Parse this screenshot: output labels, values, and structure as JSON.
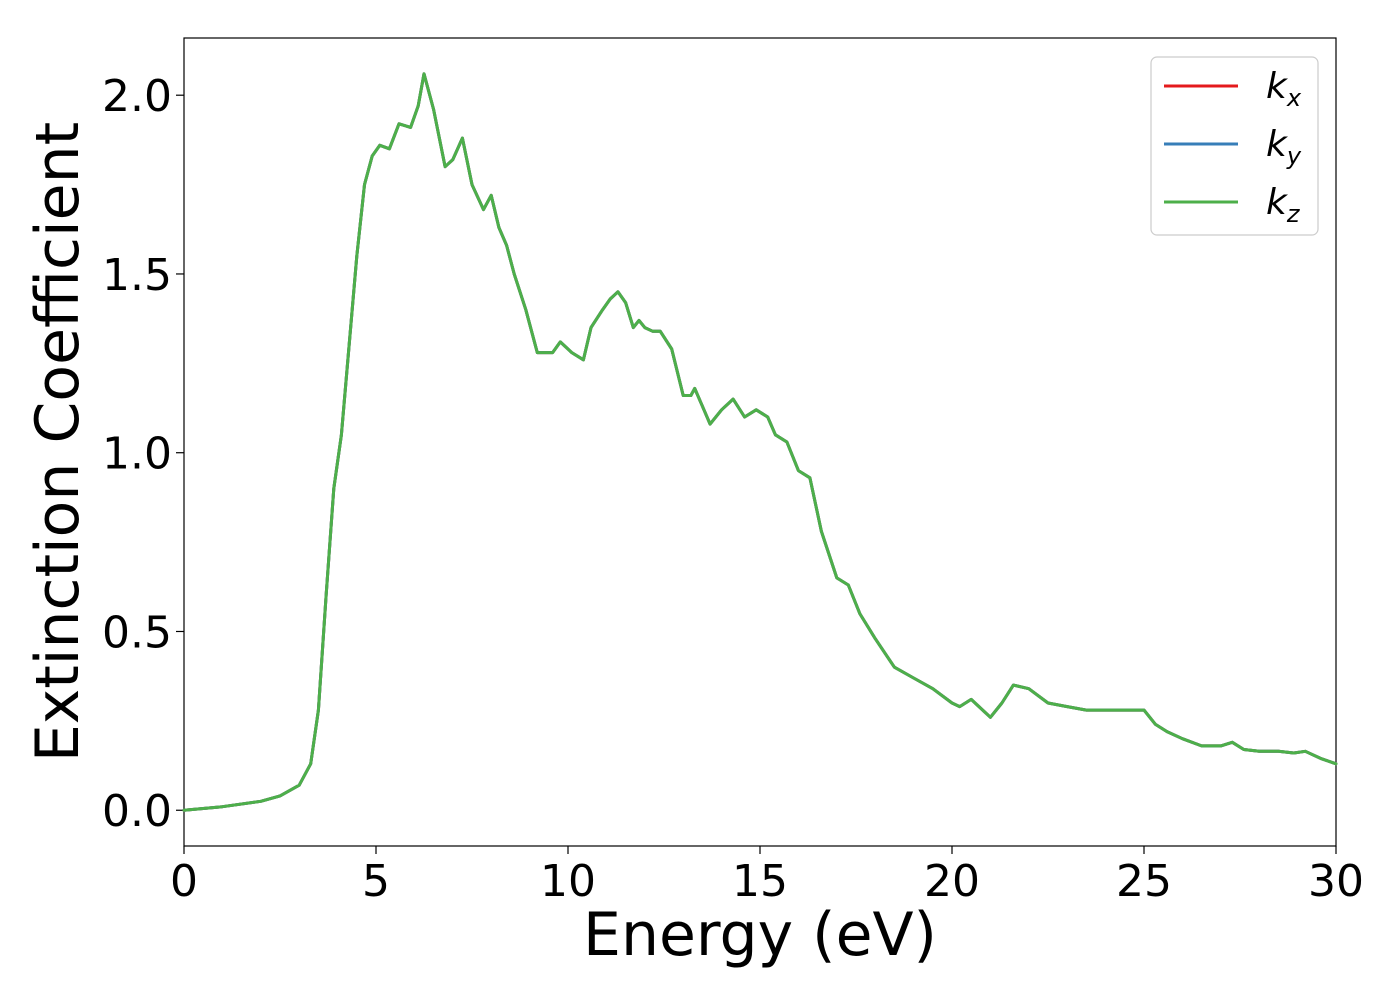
{
  "chart_data": {
    "type": "line",
    "xlabel": "Energy (eV)",
    "ylabel": "Extinction Coefficient",
    "xlim": [
      0,
      30
    ],
    "ylim": [
      -0.1,
      2.16
    ],
    "xticks": [
      0,
      5,
      10,
      15,
      20,
      25,
      30
    ],
    "xtick_labels": [
      "0",
      "5",
      "10",
      "15",
      "20",
      "25",
      "30"
    ],
    "yticks": [
      0.0,
      0.5,
      1.0,
      1.5,
      2.0
    ],
    "ytick_labels": [
      "0.0",
      "0.5",
      "1.0",
      "1.5",
      "2.0"
    ],
    "grid": false,
    "legend_position": "top-right",
    "x": [
      0,
      1,
      2,
      2.5,
      3,
      3.3,
      3.5,
      3.7,
      3.9,
      4.1,
      4.3,
      4.5,
      4.7,
      4.9,
      5.1,
      5.35,
      5.6,
      5.9,
      6.1,
      6.25,
      6.5,
      6.8,
      7.0,
      7.25,
      7.5,
      7.8,
      8.0,
      8.2,
      8.4,
      8.6,
      8.9,
      9.2,
      9.4,
      9.6,
      9.8,
      10.1,
      10.4,
      10.6,
      10.9,
      11.1,
      11.3,
      11.5,
      11.7,
      11.85,
      12.0,
      12.2,
      12.4,
      12.7,
      13.0,
      13.2,
      13.3,
      13.5,
      13.7,
      14.0,
      14.3,
      14.6,
      14.9,
      15.2,
      15.4,
      15.7,
      16.0,
      16.3,
      16.6,
      17.0,
      17.3,
      17.6,
      18.0,
      18.5,
      19.0,
      19.5,
      20.0,
      20.2,
      20.5,
      20.8,
      21.0,
      21.3,
      21.6,
      22.0,
      22.5,
      23.0,
      23.5,
      24.0,
      24.5,
      25.0,
      25.3,
      25.6,
      26.0,
      26.5,
      27.0,
      27.3,
      27.6,
      28.0,
      28.5,
      28.9,
      29.2,
      29.6,
      30.0
    ],
    "series": [
      {
        "name": "k_x",
        "color": "#e41a1c",
        "values": [
          0.0,
          0.01,
          0.025,
          0.04,
          0.07,
          0.13,
          0.28,
          0.6,
          0.9,
          1.05,
          1.3,
          1.55,
          1.75,
          1.83,
          1.86,
          1.85,
          1.92,
          1.91,
          1.97,
          2.06,
          1.96,
          1.8,
          1.82,
          1.88,
          1.75,
          1.68,
          1.72,
          1.63,
          1.58,
          1.5,
          1.4,
          1.28,
          1.28,
          1.28,
          1.31,
          1.28,
          1.26,
          1.35,
          1.4,
          1.43,
          1.45,
          1.42,
          1.35,
          1.37,
          1.35,
          1.34,
          1.34,
          1.29,
          1.16,
          1.16,
          1.18,
          1.13,
          1.08,
          1.12,
          1.15,
          1.1,
          1.12,
          1.1,
          1.05,
          1.03,
          0.95,
          0.93,
          0.78,
          0.65,
          0.63,
          0.55,
          0.48,
          0.4,
          0.37,
          0.34,
          0.3,
          0.29,
          0.31,
          0.28,
          0.26,
          0.3,
          0.35,
          0.34,
          0.3,
          0.29,
          0.28,
          0.28,
          0.28,
          0.28,
          0.24,
          0.22,
          0.2,
          0.18,
          0.18,
          0.19,
          0.17,
          0.165,
          0.165,
          0.16,
          0.165,
          0.145,
          0.13
        ]
      },
      {
        "name": "k_y",
        "color": "#377eb8",
        "values": [
          0.0,
          0.01,
          0.025,
          0.04,
          0.07,
          0.13,
          0.28,
          0.6,
          0.9,
          1.05,
          1.3,
          1.55,
          1.75,
          1.83,
          1.86,
          1.85,
          1.92,
          1.91,
          1.97,
          2.06,
          1.96,
          1.8,
          1.82,
          1.88,
          1.75,
          1.68,
          1.72,
          1.63,
          1.58,
          1.5,
          1.4,
          1.28,
          1.28,
          1.28,
          1.31,
          1.28,
          1.26,
          1.35,
          1.4,
          1.43,
          1.45,
          1.42,
          1.35,
          1.37,
          1.35,
          1.34,
          1.34,
          1.29,
          1.16,
          1.16,
          1.18,
          1.13,
          1.08,
          1.12,
          1.15,
          1.1,
          1.12,
          1.1,
          1.05,
          1.03,
          0.95,
          0.93,
          0.78,
          0.65,
          0.63,
          0.55,
          0.48,
          0.4,
          0.37,
          0.34,
          0.3,
          0.29,
          0.31,
          0.28,
          0.26,
          0.3,
          0.35,
          0.34,
          0.3,
          0.29,
          0.28,
          0.28,
          0.28,
          0.28,
          0.24,
          0.22,
          0.2,
          0.18,
          0.18,
          0.19,
          0.17,
          0.165,
          0.165,
          0.16,
          0.165,
          0.145,
          0.13
        ]
      },
      {
        "name": "k_z",
        "color": "#4daf4a",
        "values": [
          0.0,
          0.01,
          0.025,
          0.04,
          0.07,
          0.13,
          0.28,
          0.6,
          0.9,
          1.05,
          1.3,
          1.55,
          1.75,
          1.83,
          1.86,
          1.85,
          1.92,
          1.91,
          1.97,
          2.06,
          1.96,
          1.8,
          1.82,
          1.88,
          1.75,
          1.68,
          1.72,
          1.63,
          1.58,
          1.5,
          1.4,
          1.28,
          1.28,
          1.28,
          1.31,
          1.28,
          1.26,
          1.35,
          1.4,
          1.43,
          1.45,
          1.42,
          1.35,
          1.37,
          1.35,
          1.34,
          1.34,
          1.29,
          1.16,
          1.16,
          1.18,
          1.13,
          1.08,
          1.12,
          1.15,
          1.1,
          1.12,
          1.1,
          1.05,
          1.03,
          0.95,
          0.93,
          0.78,
          0.65,
          0.63,
          0.55,
          0.48,
          0.4,
          0.37,
          0.34,
          0.3,
          0.29,
          0.31,
          0.28,
          0.26,
          0.3,
          0.35,
          0.34,
          0.3,
          0.29,
          0.28,
          0.28,
          0.28,
          0.28,
          0.24,
          0.22,
          0.2,
          0.18,
          0.18,
          0.19,
          0.17,
          0.165,
          0.165,
          0.16,
          0.165,
          0.145,
          0.13
        ]
      }
    ],
    "legend": [
      {
        "main": "k",
        "sub": "x",
        "color": "#e41a1c"
      },
      {
        "main": "k",
        "sub": "y",
        "color": "#377eb8"
      },
      {
        "main": "k",
        "sub": "z",
        "color": "#4daf4a"
      }
    ]
  }
}
